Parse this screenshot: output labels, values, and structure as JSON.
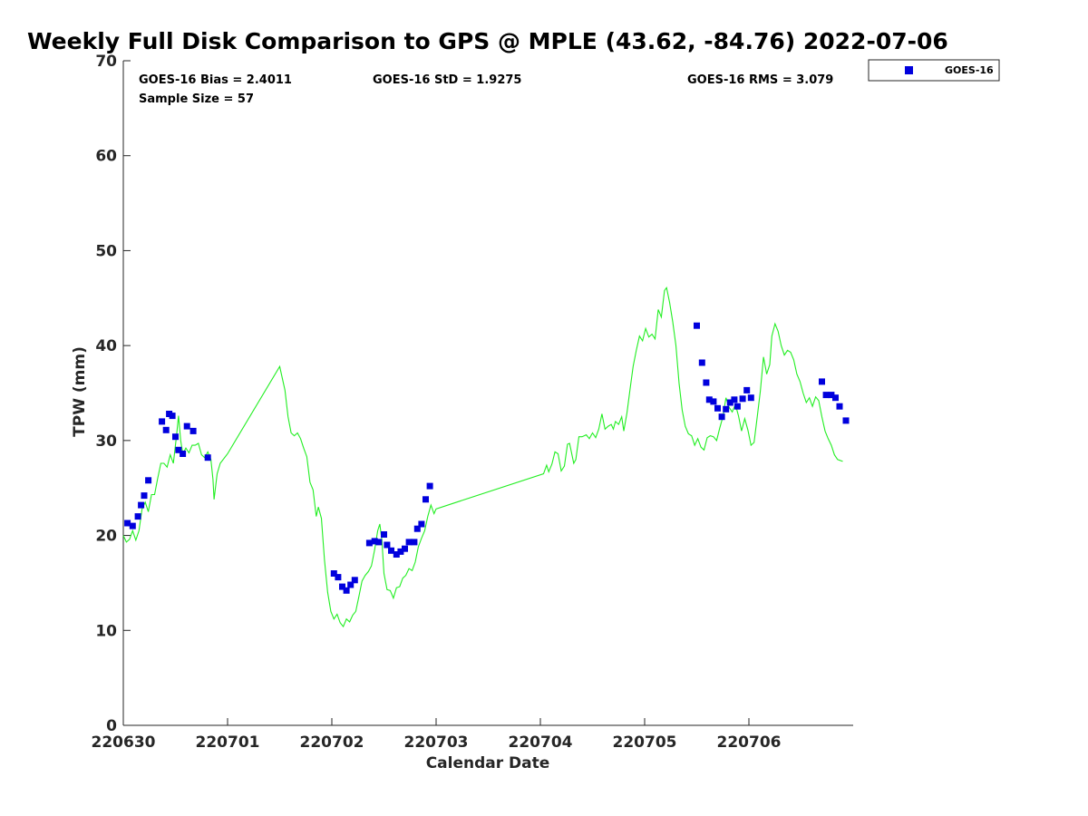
{
  "chart_data": {
    "type": "scatter+line",
    "title": "Weekly Full Disk Comparison to GPS @ MPLE (43.62, -84.76) 2022-07-06",
    "xlabel": "Calendar Date",
    "ylabel": "TPW (mm)",
    "xlim": [
      0,
      7
    ],
    "ylim": [
      0,
      70
    ],
    "x_ticks": [
      {
        "value": 0,
        "label": "220630"
      },
      {
        "value": 1,
        "label": "220701"
      },
      {
        "value": 2,
        "label": "220702"
      },
      {
        "value": 3,
        "label": "220703"
      },
      {
        "value": 4,
        "label": "220704"
      },
      {
        "value": 5,
        "label": "220705"
      },
      {
        "value": 6,
        "label": "220706"
      }
    ],
    "y_ticks": [
      {
        "value": 0,
        "label": "0"
      },
      {
        "value": 10,
        "label": "10"
      },
      {
        "value": 20,
        "label": "20"
      },
      {
        "value": 30,
        "label": "30"
      },
      {
        "value": 40,
        "label": "40"
      },
      {
        "value": 50,
        "label": "50"
      },
      {
        "value": 60,
        "label": "60"
      },
      {
        "value": 70,
        "label": "70"
      }
    ],
    "stats": {
      "bias": "GOES-16 Bias = 2.4011",
      "std": "GOES-16 StD = 1.9275",
      "rms": "GOES-16 RMS = 3.079",
      "sample": "Sample Size = 57"
    },
    "legend": {
      "label": "GOES-16",
      "color": "#0000dd",
      "position": "top-right"
    },
    "gps_color": "#22ee22",
    "goes_color": "#0000dd",
    "gps_series": [
      [
        0.0,
        20.0
      ],
      [
        0.03,
        19.3
      ],
      [
        0.06,
        19.6
      ],
      [
        0.09,
        20.5
      ],
      [
        0.12,
        19.5
      ],
      [
        0.15,
        20.5
      ],
      [
        0.18,
        22.8
      ],
      [
        0.21,
        23.5
      ],
      [
        0.24,
        22.5
      ],
      [
        0.27,
        24.3
      ],
      [
        0.3,
        24.3
      ],
      [
        0.33,
        26.0
      ],
      [
        0.36,
        27.6
      ],
      [
        0.39,
        27.6
      ],
      [
        0.42,
        27.2
      ],
      [
        0.45,
        28.5
      ],
      [
        0.48,
        27.6
      ],
      [
        0.51,
        30.5
      ],
      [
        0.53,
        32.6
      ],
      [
        0.55,
        30.0
      ],
      [
        0.57,
        28.6
      ],
      [
        0.6,
        29.2
      ],
      [
        0.63,
        28.7
      ],
      [
        0.66,
        29.5
      ],
      [
        0.69,
        29.5
      ],
      [
        0.72,
        29.7
      ],
      [
        0.75,
        28.5
      ],
      [
        0.78,
        28.2
      ],
      [
        0.81,
        28.8
      ],
      [
        0.84,
        28.0
      ],
      [
        0.86,
        25.9
      ],
      [
        0.87,
        23.8
      ],
      [
        0.9,
        26.5
      ],
      [
        0.93,
        27.6
      ],
      [
        1.0,
        28.6
      ],
      [
        1.5,
        37.8
      ],
      [
        1.55,
        35.3
      ],
      [
        1.58,
        32.5
      ],
      [
        1.61,
        30.8
      ],
      [
        1.64,
        30.5
      ],
      [
        1.67,
        30.8
      ],
      [
        1.7,
        30.2
      ],
      [
        1.73,
        29.2
      ],
      [
        1.76,
        28.3
      ],
      [
        1.79,
        25.6
      ],
      [
        1.82,
        24.8
      ],
      [
        1.85,
        22.0
      ],
      [
        1.87,
        23.0
      ],
      [
        1.9,
        21.8
      ],
      [
        1.93,
        17.4
      ],
      [
        1.96,
        14.0
      ],
      [
        1.99,
        12.0
      ],
      [
        2.02,
        11.2
      ],
      [
        2.05,
        11.7
      ],
      [
        2.08,
        10.8
      ],
      [
        2.11,
        10.4
      ],
      [
        2.14,
        11.2
      ],
      [
        2.17,
        10.9
      ],
      [
        2.2,
        11.6
      ],
      [
        2.23,
        12.0
      ],
      [
        2.26,
        13.6
      ],
      [
        2.29,
        15.2
      ],
      [
        2.32,
        15.8
      ],
      [
        2.35,
        16.2
      ],
      [
        2.38,
        16.8
      ],
      [
        2.41,
        18.5
      ],
      [
        2.44,
        20.5
      ],
      [
        2.46,
        21.2
      ],
      [
        2.48,
        19.5
      ],
      [
        2.5,
        16.0
      ],
      [
        2.53,
        14.3
      ],
      [
        2.56,
        14.2
      ],
      [
        2.59,
        13.4
      ],
      [
        2.62,
        14.5
      ],
      [
        2.65,
        14.6
      ],
      [
        2.68,
        15.5
      ],
      [
        2.71,
        15.8
      ],
      [
        2.74,
        16.5
      ],
      [
        2.77,
        16.3
      ],
      [
        2.8,
        17.2
      ],
      [
        2.83,
        18.8
      ],
      [
        2.86,
        19.7
      ],
      [
        2.89,
        20.5
      ],
      [
        2.92,
        22.0
      ],
      [
        2.95,
        23.2
      ],
      [
        2.98,
        22.3
      ],
      [
        3.0,
        22.8
      ],
      [
        4.03,
        26.5
      ],
      [
        4.06,
        27.4
      ],
      [
        4.08,
        26.7
      ],
      [
        4.11,
        27.5
      ],
      [
        4.14,
        28.8
      ],
      [
        4.17,
        28.6
      ],
      [
        4.2,
        26.8
      ],
      [
        4.23,
        27.3
      ],
      [
        4.26,
        29.6
      ],
      [
        4.28,
        29.7
      ],
      [
        4.32,
        27.6
      ],
      [
        4.34,
        28.0
      ],
      [
        4.37,
        30.4
      ],
      [
        4.4,
        30.4
      ],
      [
        4.44,
        30.6
      ],
      [
        4.47,
        30.2
      ],
      [
        4.5,
        30.8
      ],
      [
        4.53,
        30.3
      ],
      [
        4.56,
        31.2
      ],
      [
        4.59,
        32.8
      ],
      [
        4.62,
        31.2
      ],
      [
        4.65,
        31.5
      ],
      [
        4.68,
        31.7
      ],
      [
        4.7,
        31.2
      ],
      [
        4.72,
        32.0
      ],
      [
        4.75,
        31.7
      ],
      [
        4.78,
        32.5
      ],
      [
        4.8,
        31.0
      ],
      [
        4.83,
        32.9
      ],
      [
        4.86,
        35.4
      ],
      [
        4.89,
        37.8
      ],
      [
        4.92,
        39.5
      ],
      [
        4.95,
        41.0
      ],
      [
        4.98,
        40.5
      ],
      [
        5.01,
        41.8
      ],
      [
        5.04,
        40.9
      ],
      [
        5.07,
        41.2
      ],
      [
        5.1,
        40.7
      ],
      [
        5.13,
        43.8
      ],
      [
        5.16,
        43.0
      ],
      [
        5.19,
        45.8
      ],
      [
        5.21,
        46.1
      ],
      [
        5.24,
        44.5
      ],
      [
        5.27,
        42.5
      ],
      [
        5.3,
        40.0
      ],
      [
        5.33,
        36.0
      ],
      [
        5.36,
        33.2
      ],
      [
        5.39,
        31.5
      ],
      [
        5.42,
        30.7
      ],
      [
        5.45,
        30.5
      ],
      [
        5.48,
        29.5
      ],
      [
        5.51,
        30.2
      ],
      [
        5.54,
        29.3
      ],
      [
        5.57,
        29.0
      ],
      [
        5.6,
        30.3
      ],
      [
        5.63,
        30.5
      ],
      [
        5.66,
        30.4
      ],
      [
        5.69,
        30.0
      ],
      [
        5.72,
        31.3
      ],
      [
        5.75,
        32.5
      ],
      [
        5.78,
        34.5
      ],
      [
        5.81,
        33.5
      ],
      [
        5.84,
        33.0
      ],
      [
        5.87,
        33.8
      ],
      [
        5.9,
        32.6
      ],
      [
        5.93,
        31.0
      ],
      [
        5.96,
        32.3
      ],
      [
        5.99,
        31.1
      ],
      [
        6.02,
        29.5
      ],
      [
        6.05,
        29.8
      ],
      [
        6.08,
        32.5
      ],
      [
        6.11,
        35.2
      ],
      [
        6.14,
        38.8
      ],
      [
        6.17,
        37.0
      ],
      [
        6.2,
        38.0
      ],
      [
        6.22,
        41.0
      ],
      [
        6.25,
        42.3
      ],
      [
        6.28,
        41.5
      ],
      [
        6.31,
        40.0
      ],
      [
        6.34,
        39.0
      ],
      [
        6.37,
        39.5
      ],
      [
        6.4,
        39.3
      ],
      [
        6.43,
        38.5
      ],
      [
        6.46,
        37.0
      ],
      [
        6.49,
        36.2
      ],
      [
        6.52,
        35.0
      ],
      [
        6.55,
        34.0
      ],
      [
        6.58,
        34.5
      ],
      [
        6.61,
        33.6
      ],
      [
        6.64,
        34.6
      ],
      [
        6.67,
        34.2
      ],
      [
        6.7,
        32.5
      ],
      [
        6.73,
        31.0
      ],
      [
        6.76,
        30.2
      ],
      [
        6.79,
        29.5
      ],
      [
        6.82,
        28.5
      ],
      [
        6.85,
        28.0
      ],
      [
        6.9,
        27.8
      ]
    ],
    "goes_points": [
      [
        0.04,
        21.3
      ],
      [
        0.09,
        21.0
      ],
      [
        0.14,
        22.0
      ],
      [
        0.17,
        23.2
      ],
      [
        0.2,
        24.2
      ],
      [
        0.24,
        25.8
      ],
      [
        0.37,
        32.0
      ],
      [
        0.41,
        31.1
      ],
      [
        0.44,
        32.8
      ],
      [
        0.47,
        32.6
      ],
      [
        0.5,
        30.4
      ],
      [
        0.53,
        29.0
      ],
      [
        0.57,
        28.6
      ],
      [
        0.61,
        31.5
      ],
      [
        0.67,
        31.0
      ],
      [
        0.81,
        28.2
      ],
      [
        2.02,
        16.0
      ],
      [
        2.06,
        15.6
      ],
      [
        2.1,
        14.6
      ],
      [
        2.14,
        14.2
      ],
      [
        2.18,
        14.8
      ],
      [
        2.22,
        15.3
      ],
      [
        2.36,
        19.2
      ],
      [
        2.41,
        19.4
      ],
      [
        2.45,
        19.3
      ],
      [
        2.5,
        20.1
      ],
      [
        2.53,
        19.0
      ],
      [
        2.57,
        18.4
      ],
      [
        2.62,
        18.0
      ],
      [
        2.66,
        18.3
      ],
      [
        2.7,
        18.6
      ],
      [
        2.74,
        19.3
      ],
      [
        2.79,
        19.3
      ],
      [
        2.82,
        20.7
      ],
      [
        2.86,
        21.2
      ],
      [
        2.9,
        23.8
      ],
      [
        2.94,
        25.2
      ],
      [
        5.5,
        42.1
      ],
      [
        5.55,
        38.2
      ],
      [
        5.59,
        36.1
      ],
      [
        5.62,
        34.3
      ],
      [
        5.66,
        34.1
      ],
      [
        5.7,
        33.4
      ],
      [
        5.74,
        32.5
      ],
      [
        5.78,
        33.3
      ],
      [
        5.82,
        34.0
      ],
      [
        5.86,
        34.3
      ],
      [
        5.89,
        33.6
      ],
      [
        5.94,
        34.4
      ],
      [
        5.98,
        35.3
      ],
      [
        6.02,
        34.5
      ],
      [
        6.7,
        36.2
      ],
      [
        6.74,
        34.8
      ],
      [
        6.79,
        34.8
      ],
      [
        6.83,
        34.5
      ],
      [
        6.87,
        33.6
      ],
      [
        6.93,
        32.1
      ]
    ]
  }
}
